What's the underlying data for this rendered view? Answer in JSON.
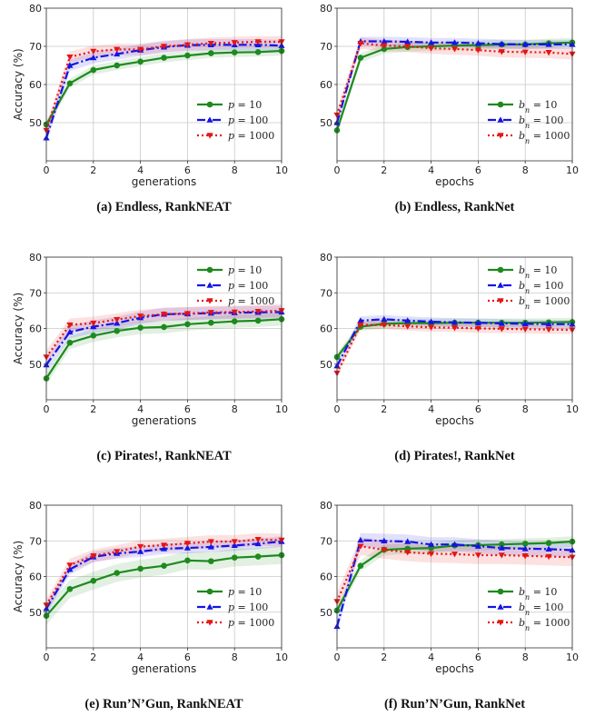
{
  "legend_common": {
    "series_names_p": [
      "p = 10",
      "p = 100",
      "p = 1000"
    ],
    "series_names_b": [
      "b_n = 10",
      "b_n = 100",
      "b_n = 1000"
    ]
  },
  "colors": {
    "s0": "#1e8a1e",
    "s1": "#1414e6",
    "s2": "#e61414"
  },
  "chart_data": [
    {
      "type": "line",
      "caption": "(a) Endless, RankNEAT",
      "xlabel": "generations",
      "ylabel": "Accuracy (%)",
      "xlim": [
        0,
        10
      ],
      "ylim": [
        40,
        80
      ],
      "xticks": [
        0,
        2,
        4,
        6,
        8,
        10
      ],
      "yticks": [
        50,
        60,
        70,
        80
      ],
      "grid": true,
      "legend_position": "lower-right",
      "x": [
        0,
        1,
        2,
        3,
        4,
        5,
        6,
        7,
        8,
        9,
        10
      ],
      "series": [
        {
          "name": "p = 10",
          "legend_main": "p",
          "legend_sub": "",
          "legend_rest": " = 10",
          "values": [
            49.5,
            60.3,
            63.8,
            65.0,
            66.0,
            67.0,
            67.6,
            68.2,
            68.4,
            68.5,
            68.8
          ],
          "band": 1.2
        },
        {
          "name": "p = 100",
          "legend_main": "p",
          "legend_sub": "",
          "legend_rest": " = 100",
          "values": [
            46.0,
            65.0,
            67.0,
            68.0,
            69.0,
            69.8,
            70.3,
            70.4,
            70.4,
            70.4,
            70.2
          ],
          "band": 1.5
        },
        {
          "name": "p = 1000",
          "legend_main": "p",
          "legend_sub": "",
          "legend_rest": " = 1000",
          "values": [
            48.0,
            67.2,
            68.7,
            69.2,
            69.2,
            70.0,
            70.4,
            70.8,
            71.0,
            71.2,
            71.2
          ],
          "band": 1.5
        }
      ]
    },
    {
      "type": "line",
      "caption": "(b) Endless, RankNet",
      "xlabel": "epochs",
      "ylabel": "",
      "xlim": [
        0,
        10
      ],
      "ylim": [
        40,
        80
      ],
      "xticks": [
        0,
        2,
        4,
        6,
        8,
        10
      ],
      "yticks": [
        50,
        60,
        70,
        80
      ],
      "grid": true,
      "legend_position": "lower-right",
      "x": [
        0,
        1,
        2,
        3,
        4,
        5,
        6,
        7,
        8,
        9,
        10
      ],
      "series": [
        {
          "name": "b_n = 10",
          "legend_main": "b",
          "legend_sub": "n",
          "legend_rest": " = 10",
          "values": [
            48.0,
            67.0,
            69.3,
            69.8,
            70.0,
            70.2,
            70.3,
            70.5,
            70.5,
            70.8,
            71.0
          ],
          "band": 1.2
        },
        {
          "name": "b_n = 100",
          "legend_main": "b",
          "legend_sub": "n",
          "legend_rest": " = 100",
          "values": [
            50.0,
            71.3,
            71.3,
            71.2,
            71.0,
            71.0,
            70.8,
            70.6,
            70.5,
            70.5,
            70.5
          ],
          "band": 1.2
        },
        {
          "name": "b_n = 1000",
          "legend_main": "b",
          "legend_sub": "n",
          "legend_rest": " = 1000",
          "values": [
            52.0,
            70.8,
            70.2,
            70.0,
            69.5,
            69.3,
            69.0,
            68.6,
            68.5,
            68.4,
            68.0
          ],
          "band": 1.5
        }
      ]
    },
    {
      "type": "line",
      "caption": "(c) Pirates!, RankNEAT",
      "xlabel": "generations",
      "ylabel": "Accuracy (%)",
      "xlim": [
        0,
        10
      ],
      "ylim": [
        40,
        80
      ],
      "xticks": [
        0,
        2,
        4,
        6,
        8,
        10
      ],
      "yticks": [
        50,
        60,
        70,
        80
      ],
      "grid": true,
      "legend_position": "upper-right",
      "x": [
        0,
        1,
        2,
        3,
        4,
        5,
        6,
        7,
        8,
        9,
        10
      ],
      "series": [
        {
          "name": "p = 10",
          "legend_main": "p",
          "legend_sub": "",
          "legend_rest": " = 10",
          "values": [
            46.0,
            56.0,
            58.0,
            59.3,
            60.2,
            60.4,
            61.2,
            61.6,
            62.0,
            62.2,
            62.6
          ],
          "band": 1.8
        },
        {
          "name": "p = 100",
          "legend_main": "p",
          "legend_sub": "",
          "legend_rest": " = 100",
          "values": [
            49.8,
            59.0,
            60.5,
            61.5,
            63.0,
            64.0,
            64.1,
            64.3,
            64.4,
            64.5,
            64.6
          ],
          "band": 1.8
        },
        {
          "name": "p = 1000",
          "legend_main": "p",
          "legend_sub": "",
          "legend_rest": " = 1000",
          "values": [
            52.0,
            61.0,
            61.5,
            62.5,
            63.5,
            64.0,
            64.2,
            64.5,
            64.6,
            64.8,
            65.0
          ],
          "band": 1.8
        }
      ]
    },
    {
      "type": "line",
      "caption": "(d) Pirates!, RankNet",
      "xlabel": "epochs",
      "ylabel": "",
      "xlim": [
        0,
        10
      ],
      "ylim": [
        40,
        80
      ],
      "xticks": [
        0,
        2,
        4,
        6,
        8,
        10
      ],
      "yticks": [
        50,
        60,
        70,
        80
      ],
      "grid": true,
      "legend_position": "upper-right",
      "x": [
        0,
        1,
        2,
        3,
        4,
        5,
        6,
        7,
        8,
        9,
        10
      ],
      "series": [
        {
          "name": "b_n = 10",
          "legend_main": "b",
          "legend_sub": "n",
          "legend_rest": " = 10",
          "values": [
            52.0,
            60.5,
            61.3,
            61.5,
            61.5,
            61.6,
            61.6,
            61.6,
            61.6,
            61.7,
            61.8
          ],
          "band": 1.2
        },
        {
          "name": "b_n = 100",
          "legend_main": "b",
          "legend_sub": "n",
          "legend_rest": " = 100",
          "values": [
            49.5,
            62.2,
            62.6,
            62.2,
            61.9,
            61.7,
            61.6,
            61.4,
            61.3,
            61.2,
            61.2
          ],
          "band": 1.2
        },
        {
          "name": "b_n = 1000",
          "legend_main": "b",
          "legend_sub": "n",
          "legend_rest": " = 1000",
          "values": [
            47.5,
            61.0,
            61.0,
            60.6,
            60.3,
            60.2,
            60.0,
            59.9,
            59.8,
            59.7,
            59.6
          ],
          "band": 1.2
        }
      ]
    },
    {
      "type": "line",
      "caption": "(e) Run’N’Gun, RankNEAT",
      "xlabel": "generations",
      "ylabel": "Accuracy (%)",
      "xlim": [
        0,
        10
      ],
      "ylim": [
        40,
        80
      ],
      "xticks": [
        0,
        2,
        4,
        6,
        8,
        10
      ],
      "yticks": [
        50,
        60,
        70,
        80
      ],
      "grid": true,
      "legend_position": "lower-right",
      "x": [
        0,
        1,
        2,
        3,
        4,
        5,
        6,
        7,
        8,
        9,
        10
      ],
      "series": [
        {
          "name": "p = 10",
          "legend_main": "p",
          "legend_sub": "",
          "legend_rest": " = 10",
          "values": [
            49.0,
            56.5,
            58.8,
            61.0,
            62.2,
            63.0,
            64.5,
            64.3,
            65.3,
            65.6,
            66.0
          ],
          "band": 2.5
        },
        {
          "name": "p = 100",
          "legend_main": "p",
          "legend_sub": "",
          "legend_rest": " = 100",
          "values": [
            51.0,
            62.0,
            65.5,
            66.5,
            67.0,
            67.8,
            68.0,
            68.3,
            68.7,
            69.2,
            69.8
          ],
          "band": 1.5
        },
        {
          "name": "p = 1000",
          "legend_main": "p",
          "legend_sub": "",
          "legend_rest": " = 1000",
          "values": [
            52.0,
            63.2,
            65.8,
            67.0,
            68.4,
            68.8,
            69.3,
            69.8,
            69.8,
            70.4,
            70.2
          ],
          "band": 1.8
        }
      ]
    },
    {
      "type": "line",
      "caption": "(f) Run’N’Gun, RankNet",
      "xlabel": "epochs",
      "ylabel": "",
      "xlim": [
        0,
        10
      ],
      "ylim": [
        40,
        80
      ],
      "xticks": [
        0,
        2,
        4,
        6,
        8,
        10
      ],
      "yticks": [
        50,
        60,
        70,
        80
      ],
      "grid": true,
      "legend_position": "lower-right",
      "x": [
        0,
        1,
        2,
        3,
        4,
        5,
        6,
        7,
        8,
        9,
        10
      ],
      "series": [
        {
          "name": "b_n = 10",
          "legend_main": "b",
          "legend_sub": "n",
          "legend_rest": " = 10",
          "values": [
            50.5,
            63.0,
            67.5,
            67.8,
            68.0,
            68.7,
            68.8,
            69.0,
            69.2,
            69.4,
            69.8
          ],
          "band": 1.5
        },
        {
          "name": "b_n = 100",
          "legend_main": "b",
          "legend_sub": "n",
          "legend_rest": " = 100",
          "values": [
            46.0,
            70.2,
            70.0,
            69.8,
            69.0,
            69.0,
            68.5,
            68.0,
            67.8,
            67.7,
            67.4
          ],
          "band": 2.0
        },
        {
          "name": "b_n = 1000",
          "legend_main": "b",
          "legend_sub": "n",
          "legend_rest": " = 1000",
          "values": [
            53.0,
            68.5,
            67.5,
            66.8,
            66.4,
            66.3,
            66.0,
            66.0,
            65.8,
            65.6,
            65.4
          ],
          "band": 2.5
        }
      ]
    }
  ]
}
